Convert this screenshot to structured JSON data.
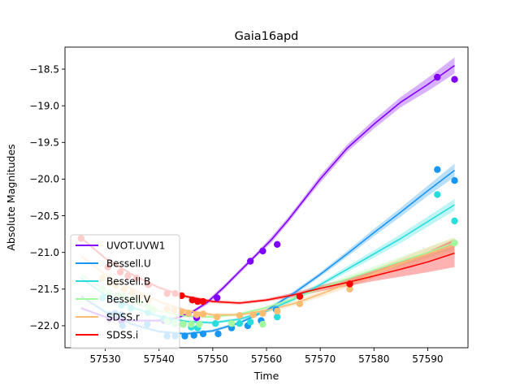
{
  "chart_data": {
    "type": "line",
    "title": "Gaia16apd",
    "xlabel": "Time",
    "ylabel": "Absolute Magnitudes",
    "xlim": [
      57522.5,
      57597.5
    ],
    "ylim": [
      -18.2,
      -22.3
    ],
    "y_inverted": true,
    "grid": false,
    "legend_position": "lower-left",
    "x_ticks": [
      57530,
      57540,
      57550,
      57560,
      57570,
      57580,
      57590
    ],
    "y_ticks": [
      -22.0,
      -21.5,
      -21.0,
      -20.5,
      -20.0,
      -19.5,
      -19.0,
      -18.5
    ],
    "x_tick_labels": [
      "57530",
      "57540",
      "57550",
      "57560",
      "57570",
      "57580",
      "57590"
    ],
    "y_tick_labels": [
      "−22.0",
      "−21.5",
      "−21.0",
      "−20.5",
      "−20.0",
      "−19.5",
      "−19.0",
      "−18.5"
    ],
    "series": [
      {
        "name": "UVOT.UVW1",
        "color": "#8000ff",
        "points": [
          [
            57530.8,
            -21.9
          ],
          [
            57533.0,
            -21.93
          ],
          [
            57541.0,
            -21.93
          ],
          [
            57547.0,
            -21.89
          ],
          [
            57550.8,
            -21.62
          ],
          [
            57557.0,
            -21.12
          ],
          [
            57559.3,
            -20.98
          ],
          [
            57562.0,
            -20.89
          ],
          [
            57591.8,
            -18.61
          ],
          [
            57595.0,
            -18.64
          ]
        ],
        "model": [
          [
            57525.5,
            -21.76
          ],
          [
            57530,
            -21.88
          ],
          [
            57535,
            -21.93
          ],
          [
            57540,
            -21.93
          ],
          [
            57543,
            -21.9
          ],
          [
            57546,
            -21.82
          ],
          [
            57549,
            -21.68
          ],
          [
            57552,
            -21.48
          ],
          [
            57555,
            -21.26
          ],
          [
            57558,
            -21.04
          ],
          [
            57561,
            -20.82
          ],
          [
            57564,
            -20.56
          ],
          [
            57567,
            -20.28
          ],
          [
            57570,
            -20.0
          ],
          [
            57575,
            -19.58
          ],
          [
            57580,
            -19.25
          ],
          [
            57585,
            -18.95
          ],
          [
            57590,
            -18.71
          ],
          [
            57595,
            -18.45
          ]
        ],
        "band": [
          0.02,
          0.02,
          0.02,
          0.02,
          0.02,
          0.02,
          0.03,
          0.03,
          0.03,
          0.03,
          0.04,
          0.04,
          0.04,
          0.05,
          0.05,
          0.06,
          0.07,
          0.09,
          0.11
        ]
      },
      {
        "name": "Bessell.U",
        "color": "#1996f3",
        "points": [
          [
            57530.8,
            -21.85
          ],
          [
            57531.8,
            -21.83
          ],
          [
            57533.0,
            -21.85
          ],
          [
            57533.2,
            -22.0
          ],
          [
            57537.8,
            -21.98
          ],
          [
            57541.5,
            -22.14
          ],
          [
            57543.0,
            -22.14
          ],
          [
            57544.8,
            -22.14
          ],
          [
            57546.5,
            -22.13
          ],
          [
            57548.2,
            -22.11
          ],
          [
            57551.0,
            -22.11
          ],
          [
            57553.5,
            -22.03
          ],
          [
            57556.5,
            -22.0
          ],
          [
            57559.0,
            -21.93
          ],
          [
            57561.8,
            -21.78
          ],
          [
            57591.8,
            -19.87
          ],
          [
            57595.0,
            -20.02
          ]
        ],
        "model": [
          [
            57525.5,
            -21.6
          ],
          [
            57530,
            -21.81
          ],
          [
            57535,
            -21.98
          ],
          [
            57540,
            -22.08
          ],
          [
            57545,
            -22.11
          ],
          [
            57550,
            -22.07
          ],
          [
            57555,
            -21.96
          ],
          [
            57560,
            -21.79
          ],
          [
            57565,
            -21.56
          ],
          [
            57570,
            -21.3
          ],
          [
            57575,
            -21.02
          ],
          [
            57580,
            -20.73
          ],
          [
            57585,
            -20.45
          ],
          [
            57590,
            -20.16
          ],
          [
            57595,
            -19.88
          ]
        ],
        "band": [
          0.02,
          0.02,
          0.02,
          0.02,
          0.02,
          0.02,
          0.02,
          0.02,
          0.03,
          0.03,
          0.04,
          0.05,
          0.06,
          0.07,
          0.09
        ]
      },
      {
        "name": "Bessell.B",
        "color": "#2adddd",
        "points": [
          [
            57529.5,
            -21.62
          ],
          [
            57533.0,
            -21.72
          ],
          [
            57534.8,
            -21.76
          ],
          [
            57538.0,
            -21.82
          ],
          [
            57540.8,
            -21.9
          ],
          [
            57541.8,
            -21.94
          ],
          [
            57543.0,
            -21.97
          ],
          [
            57544.5,
            -21.98
          ],
          [
            57546.0,
            -22.02
          ],
          [
            57547.2,
            -22.03
          ],
          [
            57550.5,
            -21.97
          ],
          [
            57555.0,
            -21.97
          ],
          [
            57557.0,
            -21.95
          ],
          [
            57562.0,
            -21.88
          ],
          [
            57591.8,
            -20.21
          ],
          [
            57595.0,
            -20.57
          ]
        ],
        "model": [
          [
            57525.5,
            -21.35
          ],
          [
            57530,
            -21.58
          ],
          [
            57535,
            -21.75
          ],
          [
            57540,
            -21.87
          ],
          [
            57545,
            -21.94
          ],
          [
            57550,
            -21.96
          ],
          [
            57555,
            -21.91
          ],
          [
            57560,
            -21.8
          ],
          [
            57565,
            -21.64
          ],
          [
            57570,
            -21.44
          ],
          [
            57575,
            -21.23
          ],
          [
            57580,
            -21.02
          ],
          [
            57585,
            -20.81
          ],
          [
            57590,
            -20.58
          ],
          [
            57595,
            -20.35
          ]
        ],
        "band": [
          0.02,
          0.02,
          0.02,
          0.02,
          0.02,
          0.02,
          0.02,
          0.02,
          0.03,
          0.03,
          0.04,
          0.05,
          0.06,
          0.07,
          0.08
        ]
      },
      {
        "name": "Bessell.V",
        "color": "#a4f89f",
        "points": [
          [
            57529.5,
            -21.5
          ],
          [
            57530.8,
            -21.55
          ],
          [
            57532.5,
            -21.58
          ],
          [
            57533.5,
            -21.6
          ],
          [
            57535.0,
            -21.63
          ],
          [
            57536.5,
            -21.67
          ],
          [
            57538.0,
            -21.74
          ],
          [
            57539.0,
            -21.78
          ],
          [
            57541.5,
            -21.94
          ],
          [
            57543.0,
            -21.96
          ],
          [
            57544.5,
            -21.98
          ],
          [
            57546.0,
            -21.98
          ],
          [
            57547.5,
            -21.98
          ],
          [
            57553.5,
            -21.97
          ],
          [
            57559.3,
            -21.98
          ],
          [
            57595.0,
            -20.87
          ]
        ],
        "model": [
          [
            57525.5,
            -21.3
          ],
          [
            57530,
            -21.52
          ],
          [
            57535,
            -21.68
          ],
          [
            57540,
            -21.8
          ],
          [
            57545,
            -21.87
          ],
          [
            57550,
            -21.88
          ],
          [
            57555,
            -21.84
          ],
          [
            57560,
            -21.75
          ],
          [
            57565,
            -21.63
          ],
          [
            57570,
            -21.49
          ],
          [
            57575,
            -21.36
          ],
          [
            57580,
            -21.24
          ],
          [
            57585,
            -21.12
          ],
          [
            57590,
            -21.0
          ],
          [
            57595,
            -20.87
          ]
        ],
        "band": [
          0.02,
          0.02,
          0.02,
          0.02,
          0.02,
          0.02,
          0.02,
          0.02,
          0.03,
          0.03,
          0.04,
          0.05,
          0.06,
          0.07,
          0.08
        ]
      },
      {
        "name": "SDSS.r",
        "color": "#fbbd72",
        "points": [
          [
            57529.5,
            -21.35
          ],
          [
            57530.8,
            -21.42
          ],
          [
            57532.0,
            -21.45
          ],
          [
            57533.5,
            -21.5
          ],
          [
            57535.0,
            -21.55
          ],
          [
            57536.5,
            -21.6
          ],
          [
            57538.0,
            -21.65
          ],
          [
            57541.5,
            -21.77
          ],
          [
            57542.8,
            -21.79
          ],
          [
            57544.2,
            -21.81
          ],
          [
            57545.5,
            -21.83
          ],
          [
            57547.0,
            -21.85
          ],
          [
            57548.2,
            -21.84
          ],
          [
            57550.8,
            -21.88
          ],
          [
            57555.0,
            -21.86
          ],
          [
            57557.5,
            -21.85
          ],
          [
            57559.3,
            -21.83
          ],
          [
            57562.0,
            -21.8
          ],
          [
            57566.2,
            -21.7
          ],
          [
            57575.5,
            -21.5
          ]
        ],
        "model": [
          [
            57525.5,
            -21.05
          ],
          [
            57530,
            -21.3
          ],
          [
            57535,
            -21.5
          ],
          [
            57540,
            -21.67
          ],
          [
            57545,
            -21.79
          ],
          [
            57550,
            -21.85
          ],
          [
            57555,
            -21.85
          ],
          [
            57560,
            -21.79
          ],
          [
            57565,
            -21.7
          ],
          [
            57570,
            -21.57
          ],
          [
            57575,
            -21.43
          ],
          [
            57580,
            -21.29
          ],
          [
            57585,
            -21.15
          ],
          [
            57590,
            -21.02
          ],
          [
            57595,
            -20.9
          ]
        ],
        "band": [
          0.02,
          0.02,
          0.02,
          0.02,
          0.02,
          0.02,
          0.02,
          0.03,
          0.03,
          0.04,
          0.05,
          0.06,
          0.07,
          0.09,
          0.1
        ]
      },
      {
        "name": "SDSS.i",
        "color": "#ff0000",
        "points": [
          [
            57525.5,
            -20.81
          ],
          [
            57530.5,
            -21.2
          ],
          [
            57532.8,
            -21.27
          ],
          [
            57534.2,
            -21.32
          ],
          [
            57535.8,
            -21.35
          ],
          [
            57538.0,
            -21.44
          ],
          [
            57541.5,
            -21.56
          ],
          [
            57543.0,
            -21.56
          ],
          [
            57544.2,
            -21.59
          ],
          [
            57546.2,
            -21.65
          ],
          [
            57547.2,
            -21.67
          ],
          [
            57548.2,
            -21.67
          ],
          [
            57566.2,
            -21.6
          ],
          [
            57575.5,
            -21.43
          ]
        ],
        "model": [
          [
            57525.5,
            -20.8
          ],
          [
            57530,
            -21.08
          ],
          [
            57535,
            -21.3
          ],
          [
            57540,
            -21.48
          ],
          [
            57545,
            -21.6
          ],
          [
            57550,
            -21.67
          ],
          [
            57555,
            -21.69
          ],
          [
            57560,
            -21.65
          ],
          [
            57565,
            -21.58
          ],
          [
            57570,
            -21.49
          ],
          [
            57575,
            -21.41
          ],
          [
            57580,
            -21.32
          ],
          [
            57585,
            -21.23
          ],
          [
            57590,
            -21.13
          ],
          [
            57595,
            -21.01
          ]
        ],
        "band": [
          0.02,
          0.02,
          0.02,
          0.02,
          0.02,
          0.02,
          0.02,
          0.02,
          0.03,
          0.04,
          0.05,
          0.07,
          0.1,
          0.14,
          0.19
        ]
      }
    ]
  }
}
